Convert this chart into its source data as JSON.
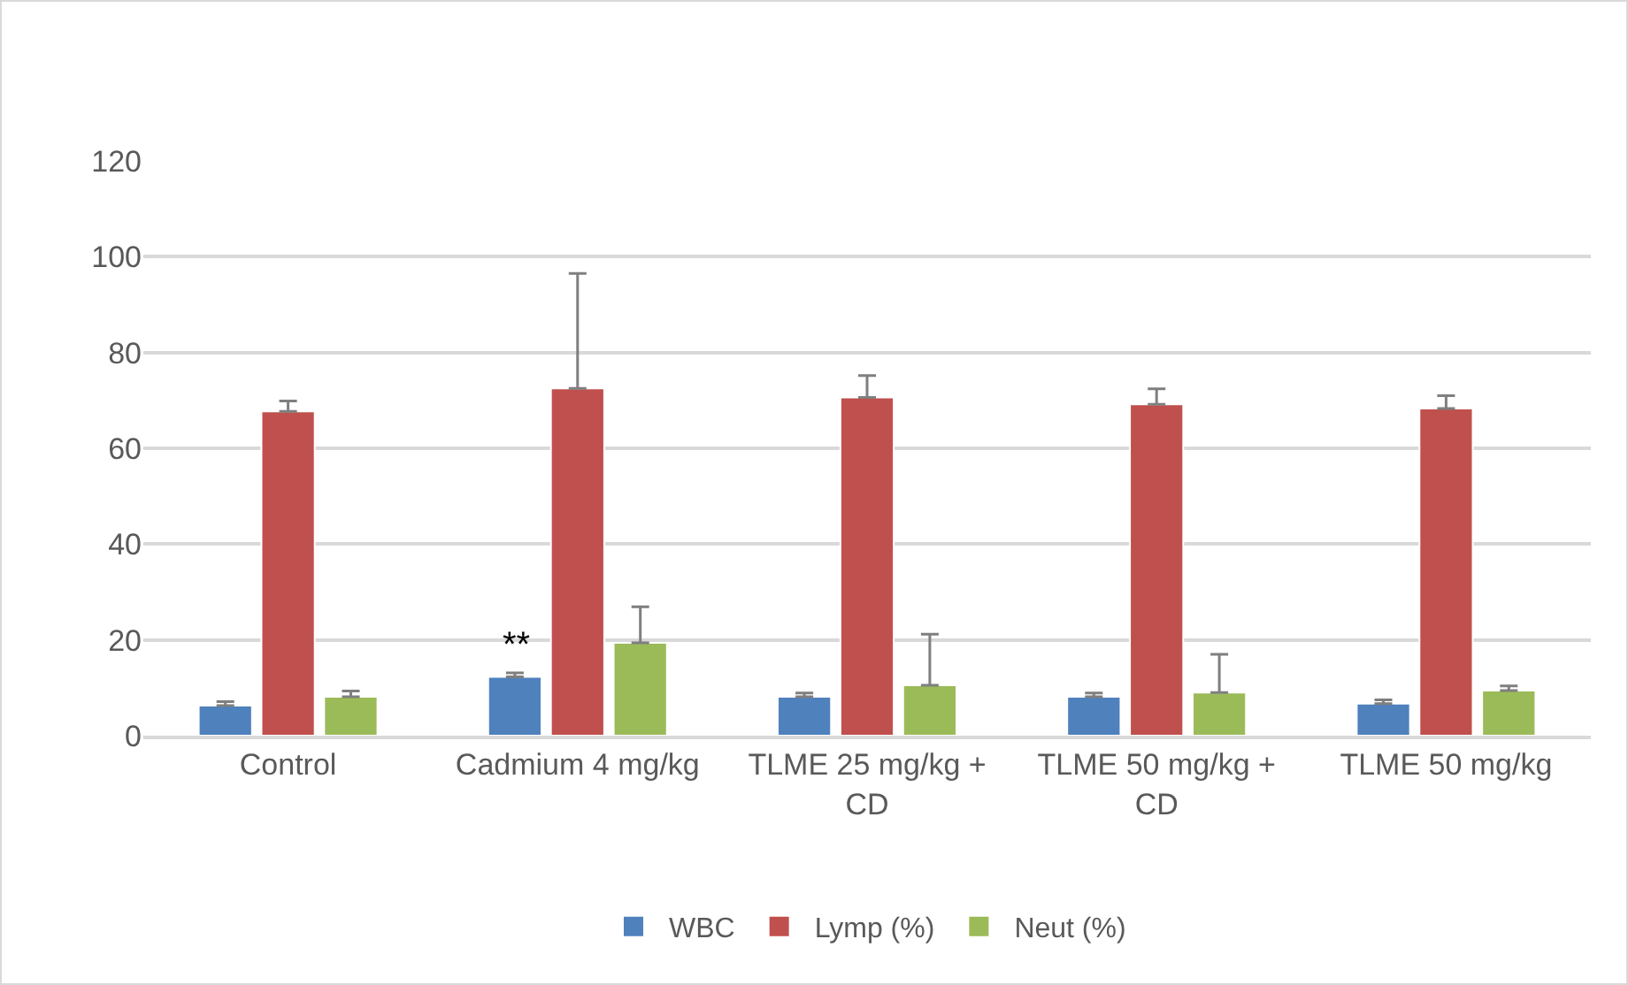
{
  "chart_data": {
    "type": "bar",
    "categories": [
      "Control",
      "Cadmium 4 mg/kg",
      "TLME 25 mg/kg + CD",
      "TLME 50 mg/kg + CD",
      "TLME 50 mg/kg"
    ],
    "series": [
      {
        "name": "WBC",
        "color": "#4f81bd",
        "values": [
          6.3,
          12.3,
          8.1,
          8.1,
          6.7
        ],
        "errors": [
          0.8,
          0.8,
          0.8,
          0.8,
          0.8
        ]
      },
      {
        "name": "Lymp (%)",
        "color": "#c0504d",
        "values": [
          67.7,
          72.5,
          70.6,
          69.2,
          68.3
        ],
        "errors": [
          2.2,
          24,
          4.6,
          3.2,
          2.7
        ]
      },
      {
        "name": "Neut (%)",
        "color": "#9bbb59",
        "values": [
          8.1,
          19.4,
          10.5,
          9.0,
          9.4
        ],
        "errors": [
          1.2,
          7.5,
          10.7,
          8,
          1.0
        ]
      }
    ],
    "annotations": [
      "**"
    ],
    "ylim": [
      0,
      120
    ],
    "yticks": [
      0,
      20,
      40,
      60,
      80,
      100,
      120
    ],
    "grid": "y",
    "legend": "bottom"
  }
}
